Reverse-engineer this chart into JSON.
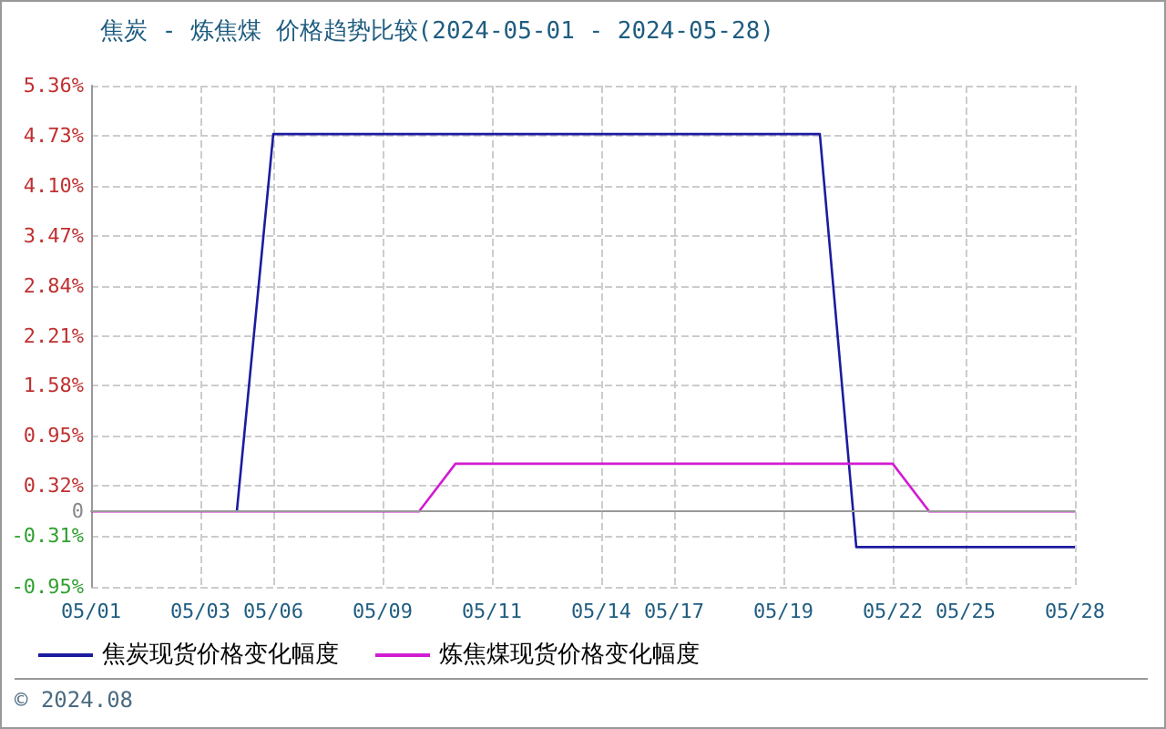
{
  "chart_data": {
    "type": "line",
    "title": "焦炭 - 炼焦煤 价格趋势比较(2024-05-01 - 2024-05-28)",
    "categories": [
      "05/01",
      null,
      null,
      "05/03",
      null,
      "05/06",
      null,
      null,
      "05/09",
      null,
      null,
      "05/11",
      null,
      null,
      "05/14",
      null,
      "05/17",
      null,
      null,
      "05/19",
      null,
      null,
      "05/22",
      null,
      "05/25",
      null,
      null,
      "05/28"
    ],
    "series": [
      {
        "name": "焦炭现货价格变化幅度",
        "color": "#1c1ca0",
        "values": [
          null,
          null,
          null,
          null,
          0,
          4.75,
          4.75,
          4.75,
          4.75,
          4.75,
          4.75,
          4.75,
          4.75,
          4.75,
          4.75,
          4.75,
          4.75,
          4.75,
          4.75,
          4.75,
          4.75,
          -0.45,
          -0.45,
          -0.45,
          -0.45,
          -0.45,
          -0.45,
          -0.45
        ]
      },
      {
        "name": "炼焦煤现货价格变化幅度",
        "color": "#d21cd2",
        "values": [
          0,
          0,
          0,
          0,
          0,
          0,
          0,
          0,
          0,
          0,
          0.6,
          0.6,
          0.6,
          0.6,
          0.6,
          0.6,
          0.6,
          0.6,
          0.6,
          0.6,
          0.6,
          0.6,
          0.6,
          0,
          0,
          0,
          0,
          0
        ]
      }
    ],
    "ylim": [
      -0.95,
      5.36
    ],
    "yticks": [
      {
        "value": -0.95,
        "label": "-0.95%"
      },
      {
        "value": -0.31,
        "label": "-0.31%"
      },
      0,
      {
        "value": 0.32,
        "label": "0.32%"
      },
      {
        "value": 0.95,
        "label": "0.95%"
      },
      {
        "value": 1.58,
        "label": "1.58%"
      },
      {
        "value": 2.21,
        "label": "2.21%"
      },
      {
        "value": 2.84,
        "label": "2.84%"
      },
      {
        "value": 3.47,
        "label": "3.47%"
      },
      {
        "value": 4.1,
        "label": "4.10%"
      },
      {
        "value": 4.73,
        "label": "4.73%"
      },
      {
        "value": 5.36,
        "label": "5.36%"
      }
    ],
    "grid": true,
    "legend": "bottom left",
    "marker": "none",
    "line_style": "solid",
    "annotations": [
      "© 2024.08"
    ]
  }
}
